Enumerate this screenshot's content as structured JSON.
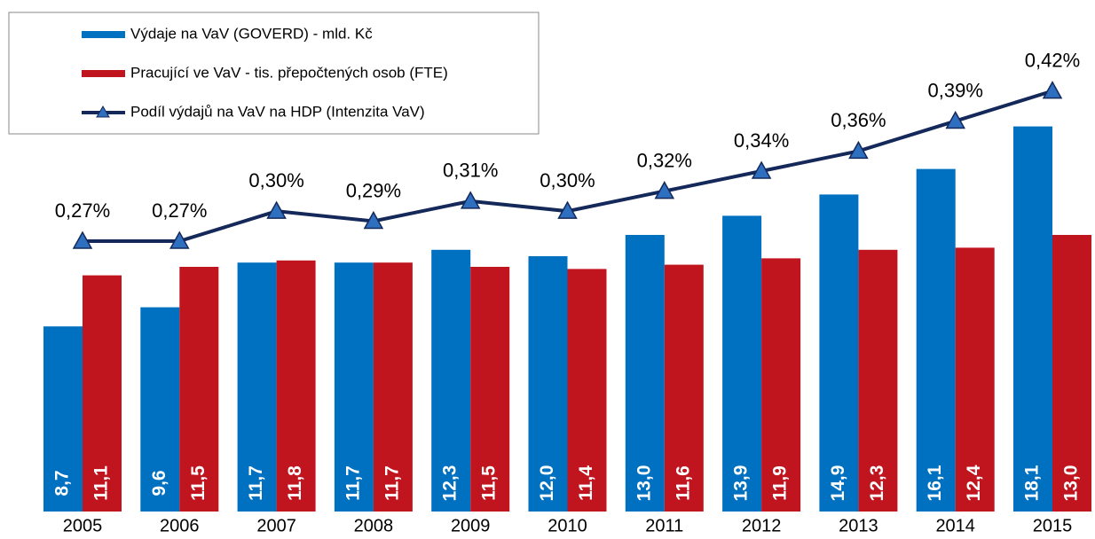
{
  "chart_data": {
    "type": "bar",
    "categories": [
      "2005",
      "2006",
      "2007",
      "2008",
      "2009",
      "2010",
      "2011",
      "2012",
      "2013",
      "2014",
      "2015"
    ],
    "series": [
      {
        "name": "Výdaje na VaV (GOVERD) - mld. Kč",
        "color": "#0070c0",
        "type": "bar",
        "values": [
          8.7,
          9.6,
          11.7,
          11.7,
          12.3,
          12.0,
          13.0,
          13.9,
          14.9,
          16.1,
          18.1
        ],
        "value_labels": [
          "8,7",
          "9,6",
          "11,7",
          "11,7",
          "12,3",
          "12,0",
          "13,0",
          "13,9",
          "14,9",
          "16,1",
          "18,1"
        ]
      },
      {
        "name": "Pracující ve VaV - tis. přepočtených osob (FTE)",
        "color": "#c0151f",
        "type": "bar",
        "values": [
          11.1,
          11.5,
          11.8,
          11.7,
          11.5,
          11.4,
          11.6,
          11.9,
          12.3,
          12.4,
          13.0
        ],
        "value_labels": [
          "11,1",
          "11,5",
          "11,8",
          "11,7",
          "11,5",
          "11,4",
          "11,6",
          "11,9",
          "12,3",
          "12,4",
          "13,0"
        ]
      },
      {
        "name": "Podíl výdajů na VaV na HDP (Intenzita VaV)",
        "color": "#14285a",
        "marker_color": "#2e6fc0",
        "type": "line",
        "axis": "y2",
        "values": [
          0.27,
          0.27,
          0.3,
          0.29,
          0.31,
          0.3,
          0.32,
          0.34,
          0.36,
          0.39,
          0.42
        ],
        "value_labels": [
          "0,27%",
          "0,27%",
          "0,30%",
          "0,29%",
          "0,31%",
          "0,30%",
          "0,32%",
          "0,34%",
          "0,36%",
          "0,39%",
          "0,42%"
        ]
      }
    ],
    "ylim": [
      0,
      24
    ],
    "y2lim": [
      0,
      0.51
    ],
    "legend": "top-left"
  }
}
